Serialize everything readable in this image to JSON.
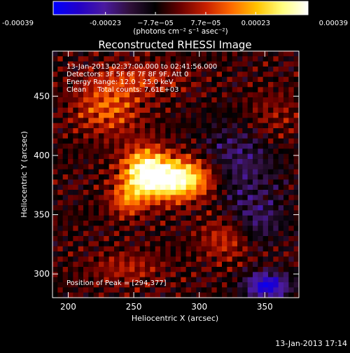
{
  "chart_data": {
    "type": "heatmap",
    "title": "Reconstructed RHESSI Image",
    "xlabel": "Heliocentric X (arcsec)",
    "ylabel": "Heliocentric Y (arcsec)",
    "xlim": [
      188,
      376
    ],
    "ylim": [
      280,
      488
    ],
    "x_ticks": [
      200,
      250,
      300,
      350
    ],
    "y_ticks": [
      300,
      350,
      400,
      450
    ],
    "colorbar": {
      "range": [
        -0.00039,
        0.00039
      ],
      "tick_values": [
        -0.00039,
        -0.00023,
        -7.7e-05,
        7.7e-05,
        0.00023,
        0.00039
      ],
      "tick_labels": [
        "-0.00039",
        "-0.00023",
        "−7.7e−05",
        "7.7e−05",
        "0.00023",
        "0.00039"
      ],
      "unit_label": "(photons cm⁻² s⁻¹ asec⁻²)",
      "colors": [
        "#0000ff",
        "#2200c8",
        "#4a1aa0",
        "#30103a",
        "#000000",
        "#6a0000",
        "#c82000",
        "#ff6a00",
        "#ffc400",
        "#ffff80",
        "#ffffff"
      ]
    },
    "peak": {
      "x": 294,
      "y": 377
    },
    "annotations": [
      "13-Jan-2013 02:37:00.000 to 02:41:56.000",
      "Detectors: 3F 5F 6F 7F 8F 9F, Att 0",
      "Energy Range: 12.0 - 25.0 keV",
      "Clean     Total counts: 7.61E+03",
      "Position of Peak = [294,377]"
    ],
    "sources": [
      {
        "x": 282,
        "y": 380,
        "sx": 20,
        "sy": 12,
        "amp": 0.00045
      },
      {
        "x": 258,
        "y": 388,
        "sx": 12,
        "sy": 14,
        "amp": 0.0003
      },
      {
        "x": 245,
        "y": 362,
        "sx": 10,
        "sy": 10,
        "amp": 0.00018
      },
      {
        "x": 230,
        "y": 440,
        "sx": 18,
        "sy": 16,
        "amp": 0.00018
      },
      {
        "x": 255,
        "y": 465,
        "sx": 25,
        "sy": 10,
        "amp": 0.00012
      },
      {
        "x": 320,
        "y": 330,
        "sx": 14,
        "sy": 14,
        "amp": 0.00013
      },
      {
        "x": 245,
        "y": 305,
        "sx": 20,
        "sy": 10,
        "amp": 0.0001
      },
      {
        "x": 355,
        "y": 432,
        "sx": 16,
        "sy": 16,
        "amp": 8e-05
      },
      {
        "x": 352,
        "y": 290,
        "sx": 12,
        "sy": 8,
        "amp": -0.0003
      },
      {
        "x": 330,
        "y": 392,
        "sx": 20,
        "sy": 25,
        "amp": -0.00014
      },
      {
        "x": 345,
        "y": 345,
        "sx": 14,
        "sy": 14,
        "amp": -0.00012
      }
    ]
  },
  "footer": {
    "timestamp": "13-Jan-2013 17:14"
  }
}
